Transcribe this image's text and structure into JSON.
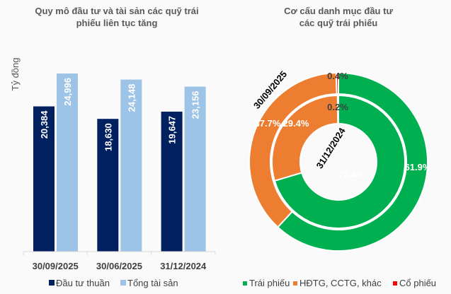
{
  "chart_data": [
    {
      "type": "bar",
      "title": [
        "Quy mô đầu tư và tài sản các quỹ trái",
        "phiếu liên tục tăng"
      ],
      "ylabel": "Tỷ đồng",
      "ylim": [
        0,
        25000
      ],
      "categories": [
        "30/09/2025",
        "30/06/2025",
        "31/12/2024"
      ],
      "series": [
        {
          "name": "Đầu tư thuần",
          "color": "#002060",
          "values": [
            20384,
            18630,
            19647
          ],
          "labels": [
            "20,384",
            "18,630",
            "19,647"
          ]
        },
        {
          "name": "Tổng tài sản",
          "color": "#9dc3e6",
          "values": [
            24996,
            24148,
            23156
          ],
          "labels": [
            "24,996",
            "24,148",
            "23,156"
          ]
        }
      ],
      "legend": "bottom"
    },
    {
      "type": "pie",
      "subtype": "doughnut",
      "title": [
        "Cơ cấu danh mục đầu tư",
        "các quỹ trái phiếu"
      ],
      "categories": [
        "Trái phiếu",
        "HĐTG, CCTG, khác",
        "Cổ phiếu"
      ],
      "colors": [
        "#00b050",
        "#ed7d31",
        "#ff0000"
      ],
      "rings": [
        {
          "name": "30/09/2025",
          "position": "outer",
          "values": [
            61.9,
            37.7,
            0.4
          ],
          "labels": [
            "61.9%",
            "37.7%",
            "0.4%"
          ]
        },
        {
          "name": "31/12/2024",
          "position": "inner",
          "values": [
            70.4,
            29.4,
            0.2
          ],
          "labels": [
            "70.4%",
            "29.4%",
            "0.2%"
          ]
        }
      ],
      "legend": "bottom"
    }
  ]
}
